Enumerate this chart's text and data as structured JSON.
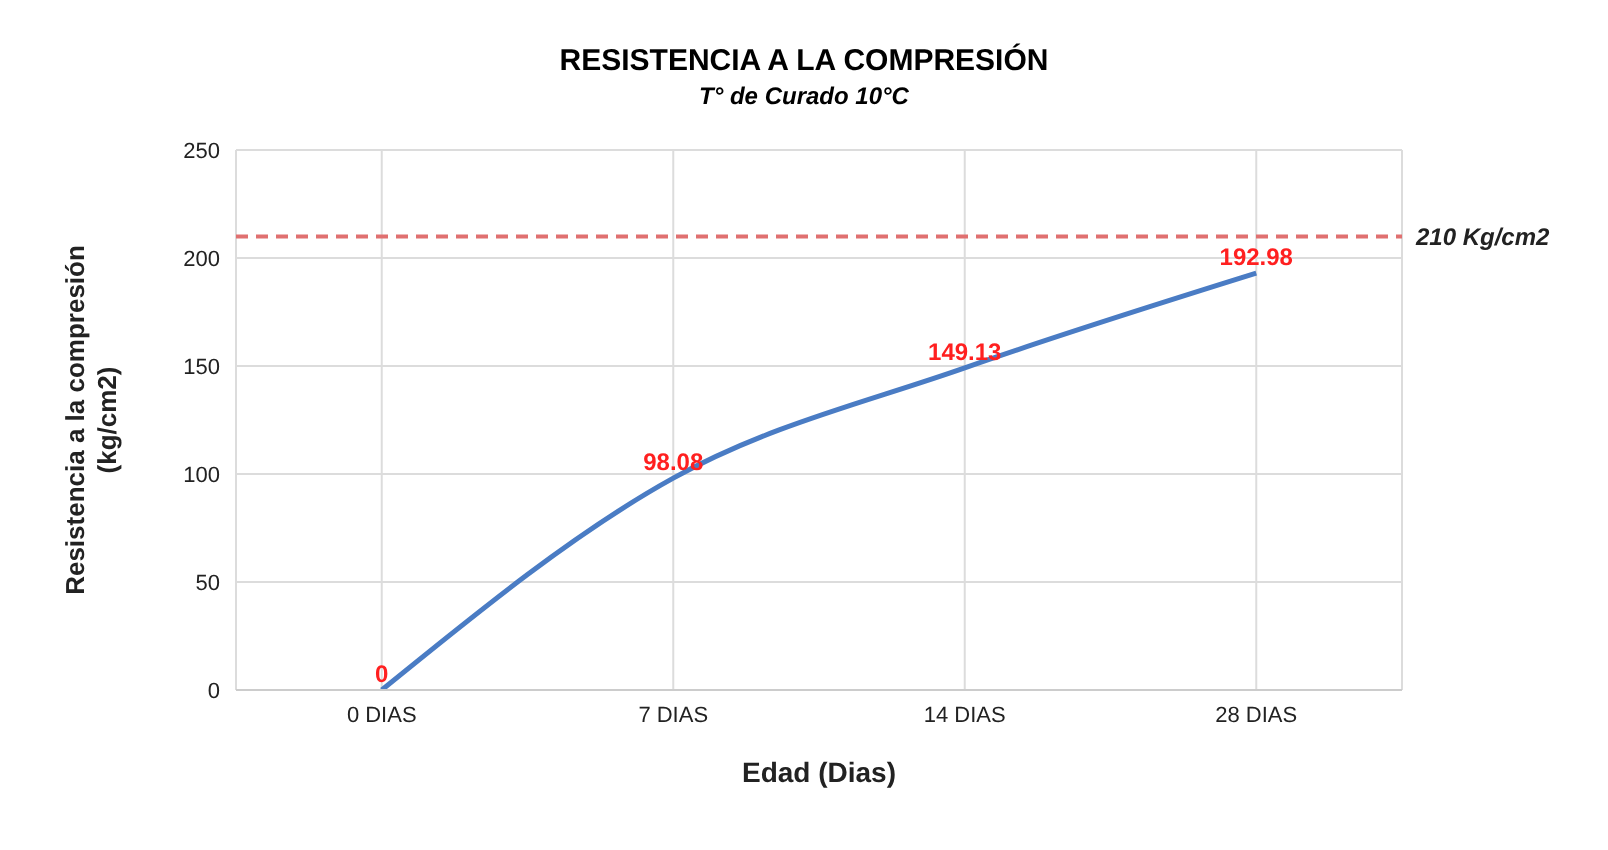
{
  "chart_data": {
    "type": "line",
    "title": "RESISTENCIA A LA COMPRESIÓN",
    "subtitle": "T° de Curado 10°C",
    "xlabel": "Edad (Dias)",
    "ylabel": "Resistencia a la compresión\n(kg/cm2)",
    "categories": [
      "0 DIAS",
      "7 DIAS",
      "14 DIAS",
      "28 DIAS"
    ],
    "series": [
      {
        "color": "#4a7cc4",
        "values": [
          0,
          98.08,
          149.13,
          192.98
        ]
      }
    ],
    "ylim": [
      0,
      250
    ],
    "yticks": [
      0,
      50,
      100,
      150,
      200,
      250
    ],
    "grid": true,
    "data_labels": true,
    "marker": "none",
    "line_style": "solid",
    "legend": false,
    "ref_lines": [
      {
        "axis": "y",
        "value": 210,
        "label": "210 Kg/cm2",
        "color": "#e07070",
        "line_style": "dashed"
      }
    ]
  }
}
